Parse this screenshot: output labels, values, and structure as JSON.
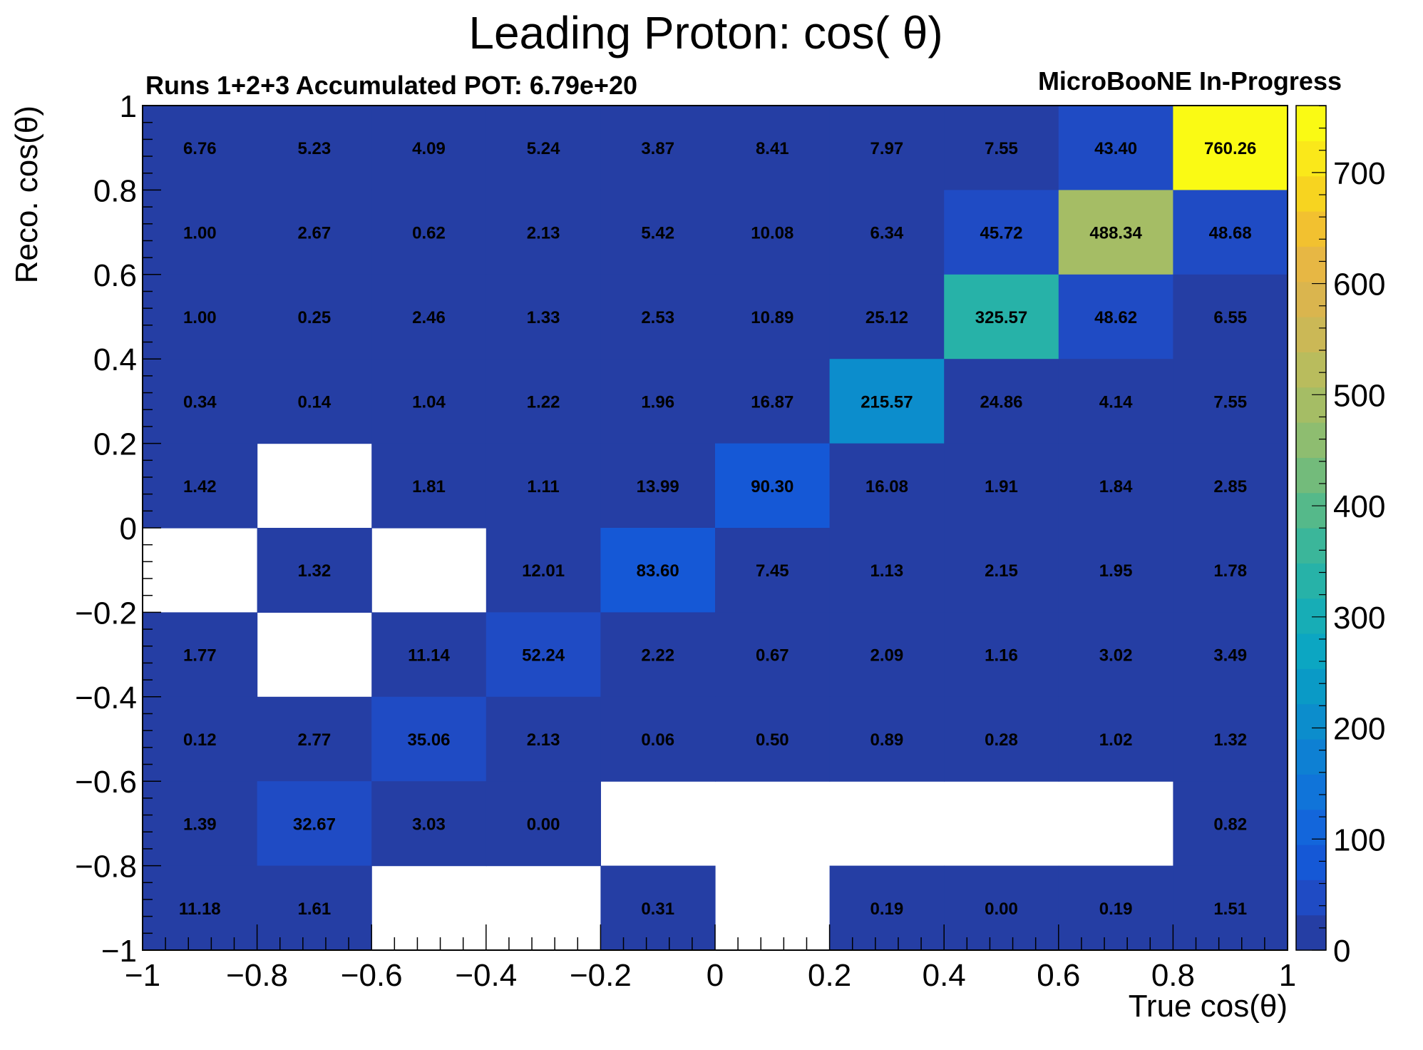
{
  "chart_data": {
    "type": "heatmap",
    "title": "Leading Proton: cos( θ)",
    "subtitle_left": "Runs 1+2+3 Accumulated POT: 6.79e+20",
    "subtitle_right": "MicroBooNE In-Progress",
    "xlabel": "True cos(θ)",
    "ylabel": "Reco. cos(θ)",
    "xlim": [
      -1,
      1
    ],
    "ylim": [
      -1,
      1
    ],
    "x_tick_labels": [
      "−1",
      "−0.8",
      "−0.6",
      "−0.4",
      "−0.2",
      "0",
      "0.2",
      "0.4",
      "0.6",
      "0.8",
      "1"
    ],
    "y_tick_labels": [
      "−1",
      "−0.8",
      "−0.6",
      "−0.4",
      "−0.2",
      "0",
      "0.2",
      "0.4",
      "0.6",
      "0.8",
      "1"
    ],
    "x_bin_edges": [
      -1,
      -0.8,
      -0.6,
      -0.4,
      -0.2,
      0,
      0.2,
      0.4,
      0.6,
      0.8,
      1
    ],
    "y_bin_edges": [
      -1,
      -0.8,
      -0.6,
      -0.4,
      -0.2,
      0,
      0.2,
      0.4,
      0.6,
      0.8,
      1
    ],
    "z_max": 760.26,
    "colorbar_tick_labels": [
      "0",
      "100",
      "200",
      "300",
      "400",
      "500",
      "600",
      "700"
    ],
    "values_note": "rows ordered from top (reco 0.8–1) to bottom (reco -1 to -0.8); null = empty bin",
    "values": [
      [
        "6.76",
        "5.23",
        "4.09",
        "5.24",
        "3.87",
        "8.41",
        "7.97",
        "7.55",
        "43.40",
        "760.26"
      ],
      [
        "1.00",
        "2.67",
        "0.62",
        "2.13",
        "5.42",
        "10.08",
        "6.34",
        "45.72",
        "488.34",
        "48.68"
      ],
      [
        "1.00",
        "0.25",
        "2.46",
        "1.33",
        "2.53",
        "10.89",
        "25.12",
        "325.57",
        "48.62",
        "6.55"
      ],
      [
        "0.34",
        "0.14",
        "1.04",
        "1.22",
        "1.96",
        "16.87",
        "215.57",
        "24.86",
        "4.14",
        "7.55"
      ],
      [
        "1.42",
        null,
        "1.81",
        "1.11",
        "13.99",
        "90.30",
        "16.08",
        "1.91",
        "1.84",
        "2.85"
      ],
      [
        null,
        "1.32",
        null,
        "12.01",
        "83.60",
        "7.45",
        "1.13",
        "2.15",
        "1.95",
        "1.78"
      ],
      [
        "1.77",
        null,
        "11.14",
        "52.24",
        "2.22",
        "0.67",
        "2.09",
        "1.16",
        "3.02",
        "3.49"
      ],
      [
        "0.12",
        "2.77",
        "35.06",
        "2.13",
        "0.06",
        "0.50",
        "0.89",
        "0.28",
        "1.02",
        "1.32"
      ],
      [
        "1.39",
        "32.67",
        "3.03",
        "0.00",
        null,
        null,
        null,
        null,
        null,
        "0.82"
      ],
      [
        "11.18",
        "1.61",
        null,
        null,
        "0.31",
        null,
        "0.19",
        "0.00",
        "0.19",
        "1.51"
      ]
    ],
    "palette": [
      "#253ea4",
      "#1f4bc4",
      "#1558d6",
      "#1366db",
      "#1074d9",
      "#0e80d3",
      "#0c8dcc",
      "#0a9ac6",
      "#0ca6c2",
      "#17adb6",
      "#27b2a8",
      "#3bb69a",
      "#55b98a",
      "#73bb7b",
      "#8ebd70",
      "#a5bd65",
      "#b9bc5d",
      "#cbb856",
      "#dab54e",
      "#e7b744",
      "#f2c130",
      "#f7d420",
      "#fae81a",
      "#fafa14"
    ]
  }
}
